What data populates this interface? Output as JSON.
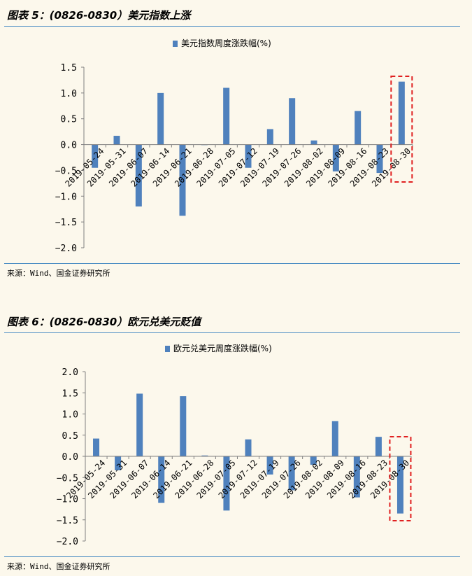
{
  "colors": {
    "background": "#fcf8ec",
    "bar": "#4f81bd",
    "rule": "#4d8ec4",
    "highlight": "#e02020",
    "axis": "#808080"
  },
  "panel1": {
    "title": "图表 5：(0826-0830）美元指数上涨",
    "source": "来源：Wind、国金证券研究所"
  },
  "panel2": {
    "title": "图表 6：(0826-0830）欧元兑美元贬值",
    "source": "来源：Wind、国金证券研究所"
  },
  "chart_data": [
    {
      "type": "bar",
      "title": "",
      "legend": "美元指数周度涨跌幅(%)",
      "categories": [
        "2019-05-24",
        "2019-05-31",
        "2019-06-07",
        "2019-06-14",
        "2019-06-21",
        "2019-06-28",
        "2019-07-05",
        "2019-07-12",
        "2019-07-19",
        "2019-07-26",
        "2019-08-02",
        "2019-08-09",
        "2019-08-16",
        "2019-08-23",
        "2019-08-30"
      ],
      "values": [
        -0.45,
        0.17,
        -1.2,
        1.0,
        -1.38,
        0.0,
        1.1,
        -0.45,
        0.3,
        0.9,
        0.08,
        -0.52,
        0.65,
        -0.55,
        1.22
      ],
      "yticks": [
        "1.5",
        "1.0",
        "0.5",
        "0.0",
        "-0.5",
        "-1.0",
        "-1.5",
        "-2.0"
      ],
      "ylim": [
        -2.0,
        1.5
      ],
      "highlight_index": 14
    },
    {
      "type": "bar",
      "title": "",
      "legend": "欧元兑美元周度涨跌幅(%)",
      "categories": [
        "2019-05-24",
        "2019-05-31",
        "2019-06-07",
        "2019-06-14",
        "2019-06-21",
        "2019-06-28",
        "2019-07-05",
        "2019-07-12",
        "2019-07-19",
        "2019-07-26",
        "2019-08-02",
        "2019-08-09",
        "2019-08-16",
        "2019-08-23",
        "2019-08-30"
      ],
      "values": [
        0.42,
        -0.33,
        1.48,
        -1.1,
        1.42,
        0.02,
        -1.28,
        0.4,
        -0.43,
        -0.8,
        -0.2,
        0.83,
        -0.97,
        0.46,
        -1.35
      ],
      "yticks": [
        "2.0",
        "1.5",
        "1.0",
        "0.5",
        "0.0",
        "-0.5",
        "-1.0",
        "-1.5",
        "-2.0"
      ],
      "ylim": [
        -2.0,
        2.0
      ],
      "highlight_index": 14
    }
  ]
}
